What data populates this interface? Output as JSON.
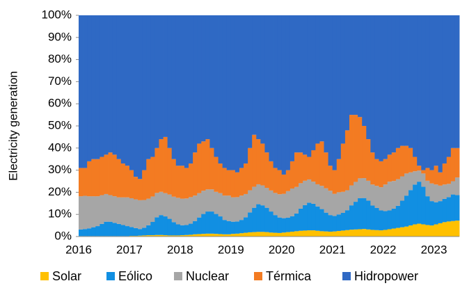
{
  "chart_data": {
    "type": "stacked_bar",
    "y_label": "Electricity generation",
    "categories": [
      "2016",
      null,
      null,
      null,
      null,
      null,
      null,
      null,
      null,
      null,
      null,
      null,
      "2017",
      null,
      null,
      null,
      null,
      null,
      null,
      null,
      null,
      null,
      null,
      null,
      "2018",
      null,
      null,
      null,
      null,
      null,
      null,
      null,
      null,
      null,
      null,
      null,
      "2019",
      null,
      null,
      null,
      null,
      null,
      null,
      null,
      null,
      null,
      null,
      null,
      "2020",
      null,
      null,
      null,
      null,
      null,
      null,
      null,
      null,
      null,
      null,
      null,
      "2021",
      null,
      null,
      null,
      null,
      null,
      null,
      null,
      null,
      null,
      null,
      null,
      "2022",
      null,
      null,
      null,
      null,
      null,
      null,
      null,
      null,
      null,
      null,
      null,
      "2023",
      null,
      null,
      null,
      null,
      null
    ],
    "series": [
      {
        "name": "Solar",
        "color": "#ffc000",
        "values": [
          0.2,
          0.2,
          0.2,
          0.2,
          0.2,
          0.2,
          0.2,
          0.2,
          0.2,
          0.2,
          0.2,
          0.2,
          0.3,
          0.3,
          0.4,
          0.5,
          0.6,
          0.6,
          0.7,
          0.7,
          0.6,
          0.5,
          0.5,
          0.5,
          0.6,
          0.7,
          0.8,
          1,
          1.1,
          1.2,
          1.3,
          1.3,
          1.2,
          1.1,
          1,
          1,
          1.2,
          1.3,
          1.5,
          1.7,
          1.9,
          2,
          2.1,
          2.1,
          2,
          1.8,
          1.7,
          1.6,
          1.8,
          2,
          2.2,
          2.4,
          2.6,
          2.7,
          2.8,
          2.8,
          2.6,
          2.4,
          2.3,
          2.2,
          2.3,
          2.5,
          2.7,
          2.9,
          3.1,
          3.2,
          3.3,
          3.4,
          3.2,
          3,
          2.9,
          2.8,
          3,
          3.3,
          3.6,
          3.9,
          4.2,
          4.5,
          5,
          5.5,
          5.8,
          5.5,
          5.2,
          5,
          5.5,
          6,
          6.5,
          6.8,
          7,
          7.2
        ]
      },
      {
        "name": "Eólico",
        "color": "#118fe2",
        "values": [
          3,
          3.2,
          3.5,
          4,
          4.5,
          5.5,
          6.5,
          6.5,
          6,
          5.5,
          5,
          4.5,
          4,
          3.5,
          3,
          3.5,
          4.5,
          6,
          8,
          9,
          8.5,
          7.5,
          6,
          5,
          4.5,
          4.5,
          5,
          6,
          7.5,
          9,
          10,
          10,
          9,
          8,
          6.5,
          6,
          5.5,
          5.5,
          6,
          7,
          9,
          11,
          12.5,
          12,
          11,
          9.5,
          8,
          7,
          6.5,
          6.5,
          7,
          8,
          10,
          11.5,
          12.5,
          12,
          11,
          10,
          8.5,
          7.5,
          7,
          7.5,
          8,
          9,
          11,
          12.5,
          14,
          14,
          13,
          11,
          10,
          9,
          8.5,
          8.5,
          9,
          10,
          12,
          14,
          16,
          18,
          19,
          17,
          13,
          11,
          10,
          10,
          10.5,
          11,
          12,
          11.5
        ]
      },
      {
        "name": "Nuclear",
        "color": "#a6a6a6",
        "values": [
          15,
          15,
          14.5,
          14,
          13.5,
          13,
          12.5,
          12,
          12,
          12,
          12.5,
          13,
          13,
          13,
          13,
          12.5,
          12,
          11.5,
          11,
          10.5,
          10.5,
          11,
          11.5,
          12,
          12,
          12,
          12,
          11.5,
          11,
          10.5,
          10,
          10,
          10,
          10.5,
          11,
          11.5,
          11,
          11,
          11,
          10.5,
          10,
          9.5,
          9,
          9,
          9,
          9.5,
          10,
          10.5,
          11,
          12,
          12.5,
          12,
          11.5,
          11,
          10.5,
          10,
          10,
          10.5,
          11,
          11,
          10,
          10,
          9.5,
          9,
          9,
          9,
          9,
          9,
          9,
          9.5,
          10,
          10.5,
          12,
          13,
          12.5,
          12,
          11,
          10,
          8,
          6,
          5,
          6,
          7,
          8,
          8,
          7,
          6.5,
          6,
          6,
          8
        ]
      },
      {
        "name": "Térmica",
        "color": "#f37b22",
        "values": [
          12.8,
          12.6,
          15.8,
          16.8,
          16.8,
          17.3,
          17.8,
          19.3,
          18.8,
          17.3,
          15.3,
          14.3,
          12.7,
          10.2,
          9.6,
          13.5,
          17.9,
          17.9,
          20.3,
          23.8,
          25.4,
          21,
          17,
          14.5,
          14.9,
          13.8,
          15.2,
          19.5,
          22.4,
          22.3,
          22.7,
          18.7,
          15.8,
          13.4,
          12.5,
          11.5,
          12.3,
          11.2,
          12.5,
          13.8,
          19.1,
          23.5,
          20.4,
          18.9,
          16,
          13.2,
          11.3,
          10.9,
          8.7,
          9.5,
          12.3,
          15.6,
          13.9,
          11.8,
          10.2,
          14.2,
          18.4,
          20.1,
          16.2,
          11.3,
          10.7,
          15,
          21.8,
          27.1,
          31.9,
          30.3,
          27.7,
          23.6,
          18.8,
          14.5,
          12.1,
          11.7,
          11.5,
          12.2,
          12.9,
          14.1,
          13.8,
          12.5,
          11,
          6.5,
          2.2,
          1.5,
          5.8,
          6,
          8.5,
          6,
          9.5,
          12.2,
          15,
          13.3
        ]
      },
      {
        "name": "Hidropower",
        "color": "#2f69c4",
        "values": [
          69,
          69,
          66,
          65,
          65,
          64,
          63,
          62,
          63,
          65,
          67,
          68,
          70,
          73,
          74,
          70,
          65,
          64,
          60,
          56,
          55,
          60,
          65,
          68,
          68,
          69,
          67,
          62,
          58,
          57,
          56,
          60,
          64,
          67,
          69,
          70,
          70,
          71,
          69,
          67,
          60,
          54,
          56,
          58,
          62,
          66,
          69,
          70,
          72,
          70,
          66,
          62,
          62,
          63,
          64,
          61,
          58,
          57,
          62,
          68,
          70,
          65,
          58,
          52,
          45,
          45,
          46,
          50,
          56,
          62,
          65,
          66,
          65,
          63,
          62,
          60,
          59,
          59,
          60,
          64,
          68,
          70,
          69,
          70,
          68,
          71,
          67,
          64,
          60,
          60
        ]
      }
    ],
    "ylim": [
      0,
      100
    ],
    "yticks": [
      {
        "value": 0,
        "label": "0%"
      },
      {
        "value": 10,
        "label": "10%"
      },
      {
        "value": 20,
        "label": "20%"
      },
      {
        "value": 30,
        "label": "30%"
      },
      {
        "value": 40,
        "label": "40%"
      },
      {
        "value": 50,
        "label": "50%"
      },
      {
        "value": 60,
        "label": "60%"
      },
      {
        "value": 70,
        "label": "70%"
      },
      {
        "value": 80,
        "label": "80%"
      },
      {
        "value": 90,
        "label": "90%"
      },
      {
        "value": 100,
        "label": "100%"
      }
    ],
    "legend": "bottom"
  }
}
